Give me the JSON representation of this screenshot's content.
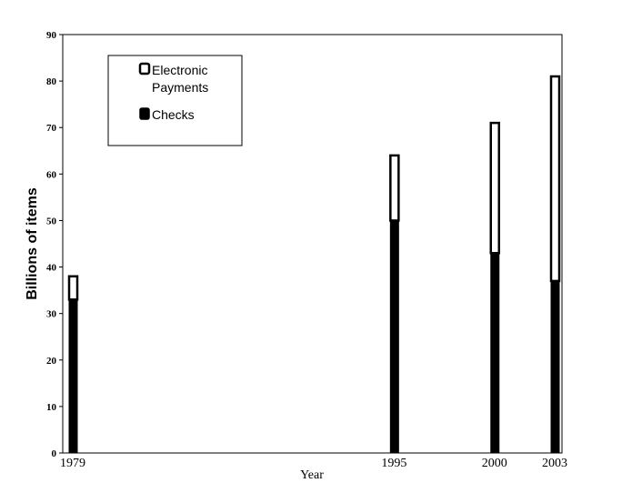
{
  "chart_data": {
    "type": "bar",
    "stacked": true,
    "categories": [
      "1979",
      "1995",
      "2000",
      "2003"
    ],
    "x": [
      1979,
      1995,
      2000,
      2003
    ],
    "xlim": [
      1979,
      2003
    ],
    "series": [
      {
        "name": "Checks",
        "values": [
          33,
          50,
          43,
          37
        ],
        "color": "#000000"
      },
      {
        "name": "Electronic Payments",
        "values": [
          5,
          14,
          28,
          44
        ],
        "color": "#ffffff"
      }
    ],
    "title": "",
    "xlabel": "Year",
    "ylabel": "Billions of items",
    "ylim": [
      0,
      90
    ],
    "yticks": [
      0,
      10,
      20,
      30,
      40,
      50,
      60,
      70,
      80,
      90
    ],
    "grid": false,
    "legend": {
      "position": "top-left",
      "entries": [
        {
          "line1": "Electronic",
          "line2": "Payments"
        },
        {
          "line1": "Checks",
          "line2": ""
        }
      ]
    }
  }
}
